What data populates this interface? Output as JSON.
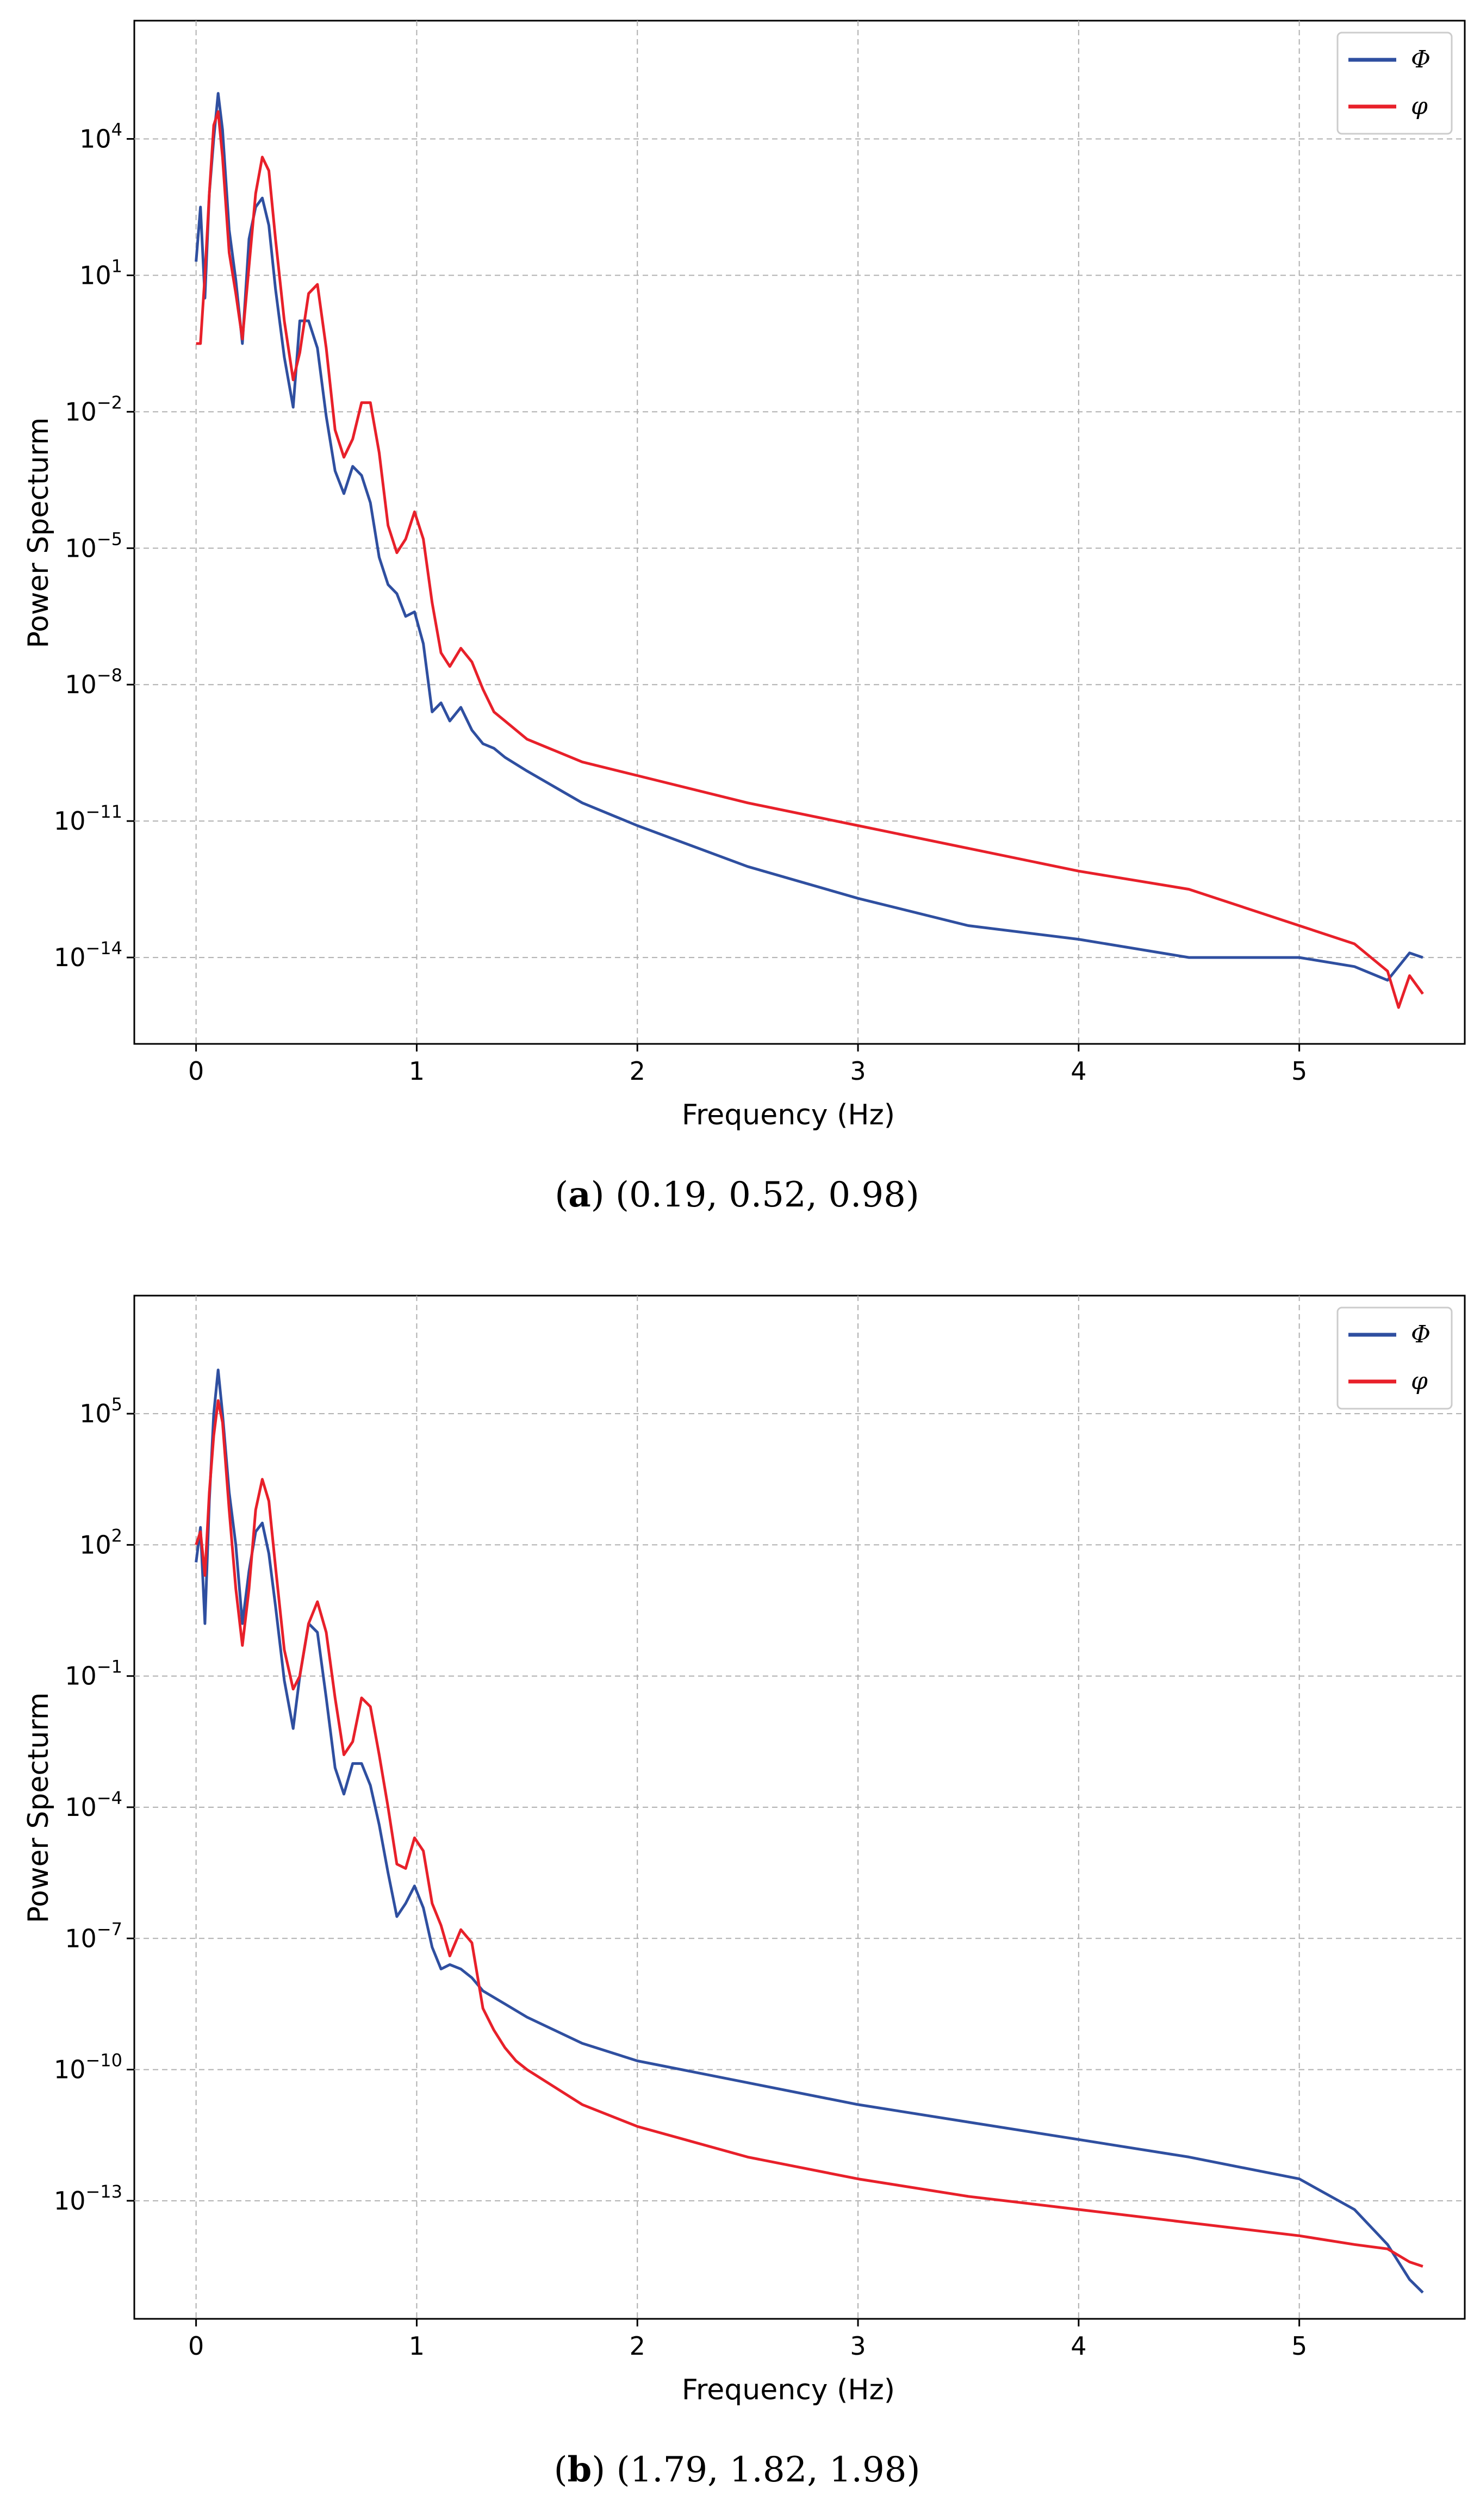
{
  "chart_data": [
    {
      "type": "line",
      "panel_label": "a",
      "caption_values": "(0.19, 0.52, 0.98)",
      "xlabel": "Frequency (Hz)",
      "ylabel": "Power Specturm",
      "yscale": "log",
      "xlim": [
        -0.28,
        5.75
      ],
      "ylim_log10": [
        -15.9,
        6.6
      ],
      "x_ticks": [
        0,
        1,
        2,
        3,
        4,
        5
      ],
      "y_tick_exponents": [
        4,
        1,
        -2,
        -5,
        -8,
        -11,
        -14
      ],
      "grid": true,
      "legend_position": "top-right",
      "series": [
        {
          "name": "Φ",
          "color": "#2f4fa0",
          "x": [
            0.0,
            0.02,
            0.04,
            0.06,
            0.08,
            0.1,
            0.12,
            0.15,
            0.18,
            0.21,
            0.24,
            0.27,
            0.3,
            0.33,
            0.36,
            0.4,
            0.44,
            0.47,
            0.51,
            0.55,
            0.59,
            0.63,
            0.67,
            0.71,
            0.75,
            0.79,
            0.83,
            0.87,
            0.91,
            0.95,
            0.99,
            1.03,
            1.07,
            1.11,
            1.15,
            1.2,
            1.25,
            1.3,
            1.35,
            1.4,
            1.5,
            1.75,
            2.0,
            2.5,
            3.0,
            3.5,
            4.0,
            4.5,
            5.0,
            5.25,
            5.4,
            5.5,
            5.56
          ],
          "y_log10": [
            1.3,
            2.5,
            0.5,
            2.8,
            4.0,
            5.0,
            4.2,
            2.0,
            0.9,
            -0.5,
            1.8,
            2.5,
            2.7,
            2.1,
            0.7,
            -0.8,
            -1.9,
            0.0,
            0.0,
            -0.6,
            -2.1,
            -3.3,
            -3.8,
            -3.2,
            -3.4,
            -4.0,
            -5.2,
            -5.8,
            -6.0,
            -6.5,
            -6.4,
            -7.1,
            -8.6,
            -8.4,
            -8.8,
            -8.5,
            -9.0,
            -9.3,
            -9.4,
            -9.6,
            -9.9,
            -10.6,
            -11.1,
            -12.0,
            -12.7,
            -13.3,
            -13.6,
            -14.0,
            -14.0,
            -14.2,
            -14.5,
            -13.9,
            -14.0
          ]
        },
        {
          "name": "φ",
          "color": "#e8202a",
          "x": [
            0.0,
            0.02,
            0.04,
            0.06,
            0.08,
            0.1,
            0.12,
            0.15,
            0.18,
            0.21,
            0.24,
            0.27,
            0.3,
            0.33,
            0.36,
            0.4,
            0.44,
            0.47,
            0.51,
            0.55,
            0.59,
            0.63,
            0.67,
            0.71,
            0.75,
            0.79,
            0.83,
            0.87,
            0.91,
            0.95,
            0.99,
            1.03,
            1.07,
            1.11,
            1.15,
            1.2,
            1.25,
            1.3,
            1.35,
            1.4,
            1.5,
            1.75,
            2.0,
            2.5,
            3.0,
            3.5,
            4.0,
            4.5,
            5.0,
            5.25,
            5.4,
            5.45,
            5.5,
            5.56
          ],
          "y_log10": [
            -0.5,
            -0.5,
            1.0,
            2.8,
            4.3,
            4.6,
            3.6,
            1.5,
            0.6,
            -0.4,
            1.2,
            2.8,
            3.6,
            3.3,
            1.8,
            0.0,
            -1.3,
            -0.7,
            0.6,
            0.8,
            -0.6,
            -2.4,
            -3.0,
            -2.6,
            -1.8,
            -1.8,
            -2.9,
            -4.5,
            -5.1,
            -4.8,
            -4.2,
            -4.8,
            -6.2,
            -7.3,
            -7.6,
            -7.2,
            -7.5,
            -8.1,
            -8.6,
            -8.8,
            -9.2,
            -9.7,
            -10.0,
            -10.6,
            -11.1,
            -11.6,
            -12.1,
            -12.5,
            -13.3,
            -13.7,
            -14.3,
            -15.1,
            -14.4,
            -14.8
          ]
        }
      ]
    },
    {
      "type": "line",
      "panel_label": "b",
      "caption_values": "(1.79, 1.82, 1.98)",
      "xlabel": "Frequency (Hz)",
      "ylabel": "Power Specturm",
      "yscale": "log",
      "xlim": [
        -0.28,
        5.75
      ],
      "ylim_log10": [
        -15.7,
        7.7
      ],
      "x_ticks": [
        0,
        1,
        2,
        3,
        4,
        5
      ],
      "y_tick_exponents": [
        5,
        2,
        -1,
        -4,
        -7,
        -10,
        -13
      ],
      "grid": true,
      "legend_position": "top-right",
      "series": [
        {
          "name": "Φ",
          "color": "#2f4fa0",
          "x": [
            0.0,
            0.02,
            0.04,
            0.06,
            0.08,
            0.1,
            0.12,
            0.15,
            0.18,
            0.21,
            0.24,
            0.27,
            0.3,
            0.33,
            0.36,
            0.4,
            0.44,
            0.47,
            0.51,
            0.55,
            0.59,
            0.63,
            0.67,
            0.71,
            0.75,
            0.79,
            0.83,
            0.87,
            0.91,
            0.95,
            0.99,
            1.03,
            1.07,
            1.11,
            1.15,
            1.2,
            1.25,
            1.3,
            1.4,
            1.5,
            1.75,
            2.0,
            2.5,
            3.0,
            3.5,
            4.0,
            4.5,
            5.0,
            5.25,
            5.4,
            5.5,
            5.56
          ],
          "y_log10": [
            1.6,
            2.4,
            0.2,
            3.0,
            5.0,
            6.0,
            5.0,
            3.2,
            2.0,
            0.2,
            1.4,
            2.3,
            2.5,
            1.8,
            0.6,
            -1.1,
            -2.2,
            -1.0,
            0.2,
            0.0,
            -1.5,
            -3.1,
            -3.7,
            -3.0,
            -3.0,
            -3.5,
            -4.4,
            -5.5,
            -6.5,
            -6.2,
            -5.8,
            -6.3,
            -7.2,
            -7.7,
            -7.6,
            -7.7,
            -7.9,
            -8.2,
            -8.5,
            -8.8,
            -9.4,
            -9.8,
            -10.3,
            -10.8,
            -11.2,
            -11.6,
            -12.0,
            -12.5,
            -13.2,
            -14.0,
            -14.8,
            -15.1
          ]
        },
        {
          "name": "φ",
          "color": "#e8202a",
          "x": [
            0.0,
            0.02,
            0.04,
            0.06,
            0.08,
            0.1,
            0.12,
            0.15,
            0.18,
            0.21,
            0.24,
            0.27,
            0.3,
            0.33,
            0.36,
            0.4,
            0.44,
            0.47,
            0.51,
            0.55,
            0.59,
            0.63,
            0.67,
            0.71,
            0.75,
            0.79,
            0.83,
            0.87,
            0.91,
            0.95,
            0.99,
            1.03,
            1.07,
            1.11,
            1.15,
            1.2,
            1.25,
            1.3,
            1.35,
            1.4,
            1.45,
            1.5,
            1.75,
            2.0,
            2.5,
            3.0,
            3.5,
            4.0,
            4.5,
            5.0,
            5.25,
            5.4,
            5.5,
            5.56
          ],
          "y_log10": [
            2.0,
            2.3,
            1.3,
            3.2,
            4.5,
            5.3,
            4.8,
            2.8,
            1.0,
            -0.3,
            1.0,
            2.8,
            3.5,
            3.0,
            1.5,
            -0.4,
            -1.3,
            -1.0,
            0.2,
            0.7,
            0.0,
            -1.5,
            -2.8,
            -2.5,
            -1.5,
            -1.7,
            -2.8,
            -4.0,
            -5.3,
            -5.4,
            -4.7,
            -5.0,
            -6.2,
            -6.7,
            -7.4,
            -6.8,
            -7.1,
            -8.6,
            -9.1,
            -9.5,
            -9.8,
            -10.0,
            -10.8,
            -11.3,
            -12.0,
            -12.5,
            -12.9,
            -13.2,
            -13.5,
            -13.8,
            -14.0,
            -14.1,
            -14.4,
            -14.5
          ]
        }
      ]
    }
  ]
}
